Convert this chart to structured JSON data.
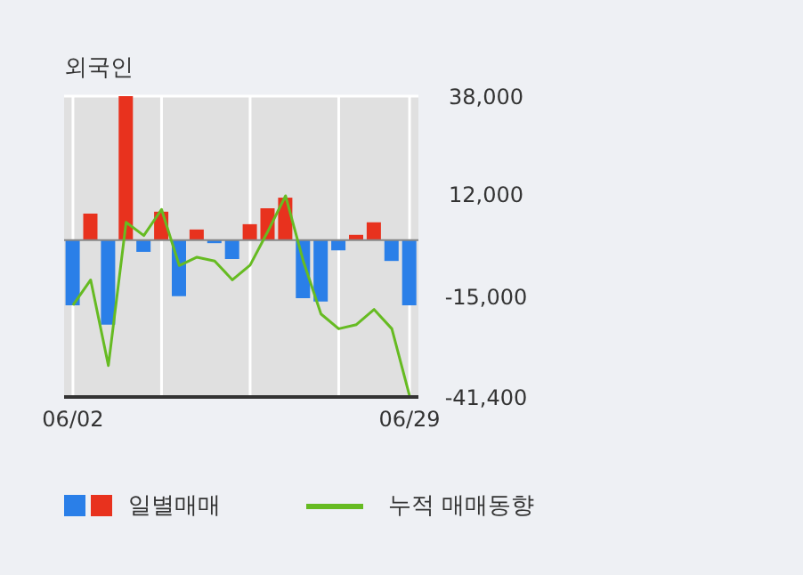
{
  "chart_data": {
    "type": "bar",
    "title": "외국인",
    "categories": [
      "06/02",
      null,
      null,
      null,
      null,
      null,
      null,
      null,
      null,
      null,
      null,
      null,
      null,
      null,
      null,
      null,
      null,
      null,
      null,
      "06/29"
    ],
    "series": [
      {
        "name": "일별매매",
        "colors": [
          "#2a7fe8",
          "#e8321e",
          "#2a7fe8",
          "#e8321e",
          "#2a7fe8",
          "#e8321e",
          "#2a7fe8",
          "#e8321e",
          "#2a7fe8",
          "#2a7fe8",
          "#e8321e",
          "#e8321e",
          "#e8321e",
          "#2a7fe8",
          "#2a7fe8",
          "#2a7fe8",
          "#e8321e",
          "#e8321e",
          "#2a7fe8",
          "#2a7fe8"
        ],
        "values": [
          -17200,
          7000,
          -22300,
          38000,
          -3100,
          7500,
          -14800,
          2800,
          -800,
          -5000,
          4200,
          8400,
          11200,
          -15300,
          -16200,
          -2700,
          1400,
          4700,
          -5500,
          -17200
        ]
      },
      {
        "name": "누적 매매동향",
        "type": "line",
        "color": "#66bb22",
        "values": [
          -17200,
          -10500,
          -33100,
          4700,
          1200,
          8100,
          -6700,
          -4500,
          -5500,
          -10500,
          -6600,
          2300,
          11700,
          -5500,
          -19500,
          -23400,
          -22300,
          -18300,
          -23400,
          -41100
        ]
      }
    ],
    "ylim": [
      -41400,
      38000
    ],
    "yticks": [
      {
        "value": 38000,
        "label": "38,000"
      },
      {
        "value": 12000,
        "label": "12,000"
      },
      {
        "value": -15000,
        "label": "-15,000"
      },
      {
        "value": -41400,
        "label": "-41,400"
      }
    ],
    "ref_lines": [
      {
        "axis": "y",
        "value": 0,
        "color": "#888888"
      }
    ],
    "grid": true,
    "legend": "bottom"
  }
}
